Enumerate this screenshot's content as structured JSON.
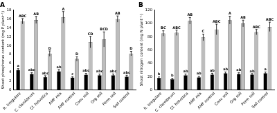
{
  "chart_data": [
    {
      "type": "bar",
      "title": "A",
      "y_label": "Shoot phosphorus content (mg P plant⁻¹)",
      "categories": [
        "R. irregulare",
        "C. claroideum",
        "Cl. helvetica",
        "AMF mix",
        "AMF control",
        "Conv soil",
        "Org soil",
        "Perm soil",
        "Soil control"
      ],
      "series": [
        {
          "color": "#000000",
          "values": [
            4.5,
            3.6,
            2.9,
            4.2,
            2.8,
            3.4,
            3.3,
            3.3,
            3.0
          ],
          "errors": [
            0.3,
            0.3,
            0.3,
            0.4,
            0.2,
            0.3,
            0.3,
            0.3,
            0.3
          ],
          "annotations": [
            "a",
            "abc",
            "abc",
            "ab",
            "c",
            "abc",
            "abc",
            "abc",
            "abc"
          ]
        },
        {
          "color": "#bdbdbd",
          "values": [
            15.5,
            15.8,
            8.2,
            16.4,
            7.0,
            10.8,
            11.4,
            16.0,
            8.2
          ],
          "errors": [
            0.6,
            0.8,
            0.6,
            1.3,
            0.5,
            1.3,
            1.7,
            0.7,
            0.5
          ],
          "annotations": [
            "ABC",
            "AB",
            "D",
            "A",
            "D",
            "CD",
            "BCD",
            "AB",
            "D"
          ]
        }
      ],
      "ylim": [
        0,
        18
      ],
      "yticks": [
        0,
        2,
        4,
        6,
        8,
        10,
        12,
        14,
        16,
        18
      ],
      "grid": false
    },
    {
      "type": "bar",
      "title": "B",
      "y_label": "Shoot nitrogen content (mg N plant⁻¹)",
      "categories": [
        "R. irregulare",
        "C. claroideum",
        "Cl. helvetica",
        "AMF mix",
        "AMF control",
        "Conv soil",
        "Org soil",
        "Perm soil",
        "Soil control"
      ],
      "series": [
        {
          "color": "#000000",
          "values": [
            18,
            16,
            22,
            19,
            23,
            25,
            24,
            23,
            25
          ],
          "errors": [
            1.5,
            1.5,
            2,
            1.5,
            2,
            2,
            2,
            1.5,
            2
          ],
          "annotations": [
            "b",
            "b",
            "ab",
            "ab",
            "ab",
            "ab",
            "ab",
            "ab",
            "a"
          ]
        },
        {
          "color": "#bdbdbd",
          "values": [
            85,
            86,
            104,
            79,
            91,
            105,
            100,
            87,
            95
          ],
          "errors": [
            4,
            4,
            5,
            5,
            8,
            6,
            5,
            4,
            7
          ],
          "annotations": [
            "BC",
            "ABC",
            "AB",
            "C",
            "ABC",
            "A",
            "AB",
            "ABC",
            "ABC"
          ]
        }
      ],
      "ylim": [
        0,
        120
      ],
      "yticks": [
        0,
        20,
        40,
        60,
        80,
        100,
        120
      ],
      "grid": false
    }
  ]
}
